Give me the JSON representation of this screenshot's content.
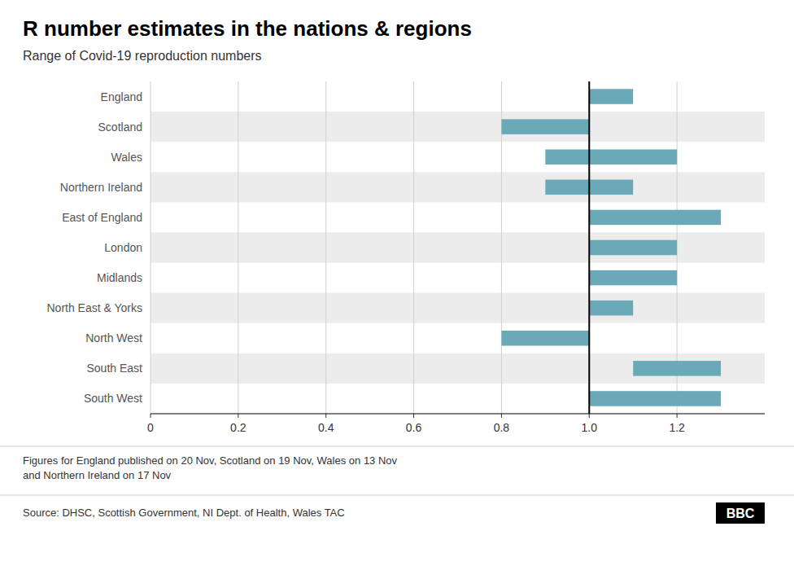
{
  "chart_data": {
    "type": "range_bar",
    "orientation": "horizontal",
    "title": "R number estimates in the nations & regions",
    "subtitle": "Range of Covid-19 reproduction numbers",
    "footnote": "Figures for England published on 20 Nov, Scotland on 19 Nov, Wales on 13 Nov\nand Northern Ireland on 17 Nov",
    "source": "Source: DHSC, Scottish Government, NI Dept. of Health, Wales TAC",
    "logo": "BBC",
    "categories": [
      "England",
      "Scotland",
      "Wales",
      "Northern Ireland",
      "East of England",
      "London",
      "Midlands",
      "North East & Yorks",
      "North West",
      "South East",
      "South West"
    ],
    "low": [
      1.0,
      0.8,
      0.9,
      0.9,
      1.0,
      1.0,
      1.0,
      1.0,
      0.8,
      1.1,
      1.0
    ],
    "high": [
      1.1,
      1.0,
      1.2,
      1.1,
      1.3,
      1.2,
      1.2,
      1.1,
      1.0,
      1.3,
      1.3
    ],
    "color": "#6aaab8",
    "reference_line": 1.0,
    "xlim": [
      0,
      1.4
    ],
    "xticks": [
      0,
      0.2,
      0.4,
      0.6,
      0.8,
      {
        "value": 1.0,
        "label": "1.0"
      },
      1.2
    ],
    "grid": true
  }
}
